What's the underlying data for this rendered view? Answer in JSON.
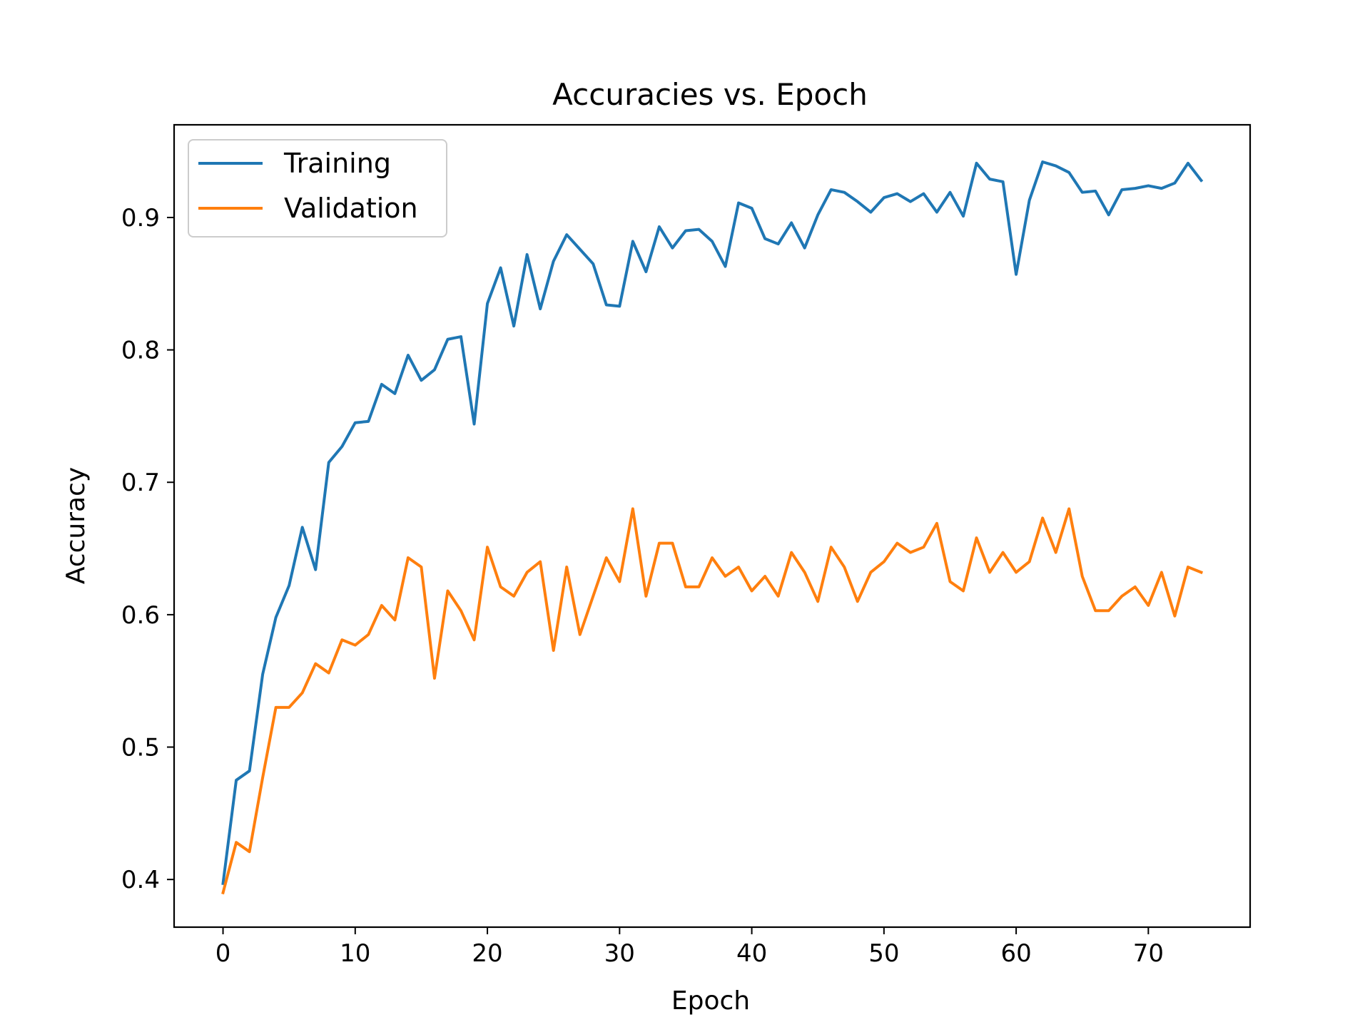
{
  "chart_data": {
    "type": "line",
    "title": "Accuracies vs. Epoch",
    "xlabel": "Epoch",
    "ylabel": "Accuracy",
    "xlim": [
      -3.7,
      77.7
    ],
    "ylim": [
      0.364,
      0.97
    ],
    "xticks": [
      0,
      10,
      20,
      30,
      40,
      50,
      60,
      70
    ],
    "yticks": [
      0.4,
      0.5,
      0.6,
      0.7,
      0.8,
      0.9
    ],
    "ytick_labels": [
      "0.4",
      "0.5",
      "0.6",
      "0.7",
      "0.8",
      "0.9"
    ],
    "grid": false,
    "legend_position": "upper-left",
    "x": [
      0,
      1,
      2,
      3,
      4,
      5,
      6,
      7,
      8,
      9,
      10,
      11,
      12,
      13,
      14,
      15,
      16,
      17,
      18,
      19,
      20,
      21,
      22,
      23,
      24,
      25,
      26,
      27,
      28,
      29,
      30,
      31,
      32,
      33,
      34,
      35,
      36,
      37,
      38,
      39,
      40,
      41,
      42,
      43,
      44,
      45,
      46,
      47,
      48,
      49,
      50,
      51,
      52,
      53,
      54,
      55,
      56,
      57,
      58,
      59,
      60,
      61,
      62,
      63,
      64,
      65,
      66,
      67,
      68,
      69,
      70,
      71,
      72,
      73,
      74
    ],
    "series": [
      {
        "name": "Training",
        "color": "#1f77b4",
        "values": [
          0.397,
          0.475,
          0.482,
          0.555,
          0.598,
          0.622,
          0.666,
          0.634,
          0.715,
          0.727,
          0.745,
          0.746,
          0.774,
          0.767,
          0.796,
          0.777,
          0.785,
          0.808,
          0.81,
          0.744,
          0.835,
          0.862,
          0.818,
          0.872,
          0.831,
          0.867,
          0.887,
          0.876,
          0.865,
          0.834,
          0.833,
          0.882,
          0.859,
          0.893,
          0.877,
          0.89,
          0.891,
          0.882,
          0.863,
          0.911,
          0.907,
          0.884,
          0.88,
          0.896,
          0.877,
          0.902,
          0.921,
          0.919,
          0.912,
          0.904,
          0.915,
          0.918,
          0.912,
          0.918,
          0.904,
          0.919,
          0.901,
          0.941,
          0.929,
          0.927,
          0.857,
          0.913,
          0.942,
          0.939,
          0.934,
          0.919,
          0.92,
          0.902,
          0.921,
          0.922,
          0.924,
          0.922,
          0.926,
          0.941,
          0.928
        ]
      },
      {
        "name": "Validation",
        "color": "#ff7f0e",
        "values": [
          0.39,
          0.428,
          0.421,
          0.477,
          0.53,
          0.53,
          0.541,
          0.563,
          0.556,
          0.581,
          0.577,
          0.585,
          0.607,
          0.596,
          0.643,
          0.636,
          0.552,
          0.618,
          0.603,
          0.581,
          0.651,
          0.621,
          0.614,
          0.632,
          0.64,
          0.573,
          0.636,
          0.585,
          0.614,
          0.643,
          0.625,
          0.68,
          0.614,
          0.654,
          0.654,
          0.621,
          0.621,
          0.643,
          0.629,
          0.636,
          0.618,
          0.629,
          0.614,
          0.647,
          0.632,
          0.61,
          0.651,
          0.636,
          0.61,
          0.632,
          0.64,
          0.654,
          0.647,
          0.651,
          0.669,
          0.625,
          0.618,
          0.658,
          0.632,
          0.647,
          0.632,
          0.64,
          0.673,
          0.647,
          0.68,
          0.629,
          0.603,
          0.603,
          0.614,
          0.621,
          0.607,
          0.632,
          0.599,
          0.636,
          0.632
        ]
      }
    ]
  }
}
